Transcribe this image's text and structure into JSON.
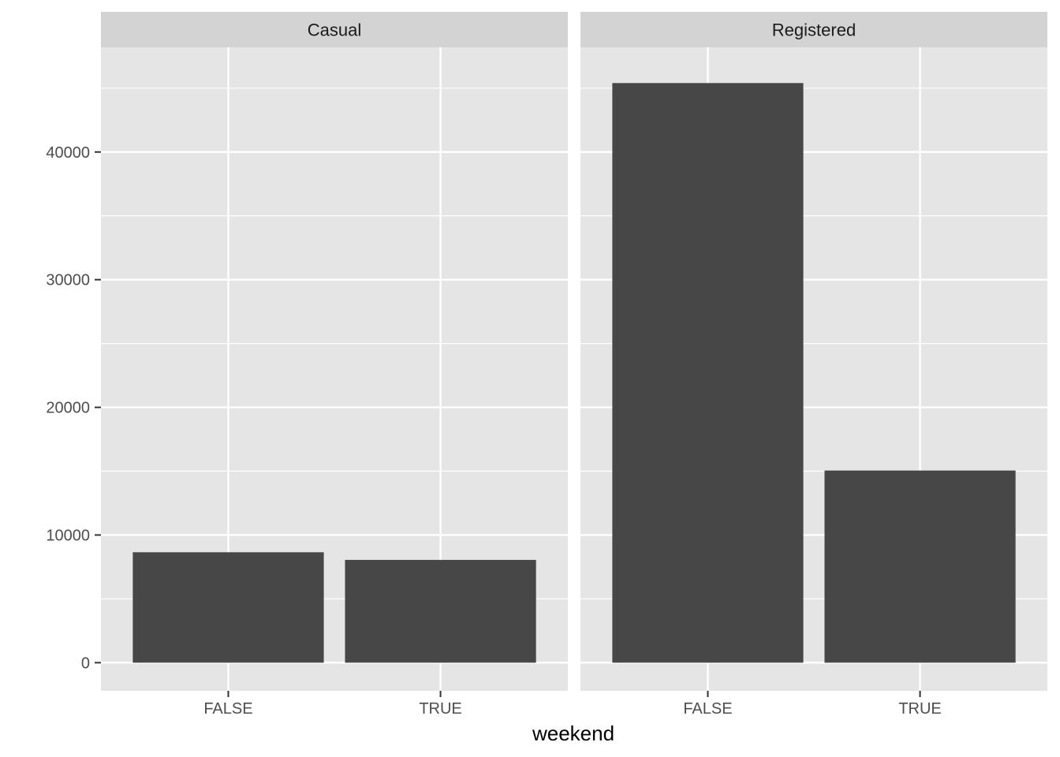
{
  "chart_data": {
    "type": "bar",
    "facets": [
      "Casual",
      "Registered"
    ],
    "categories": [
      "FALSE",
      "TRUE"
    ],
    "series": [
      {
        "facet": "Casual",
        "values": [
          8650,
          8050
        ]
      },
      {
        "facet": "Registered",
        "values": [
          45400,
          15050
        ]
      }
    ],
    "xlabel": "weekend",
    "ylabel": "",
    "ylim": [
      -2200,
      48200
    ],
    "yticks": [
      0,
      10000,
      20000,
      30000,
      40000
    ],
    "ytick_labels": [
      "0",
      "10000",
      "20000",
      "30000",
      "40000"
    ],
    "grid": true,
    "colors": {
      "bar": "#474747",
      "panel": "#e5e5e5",
      "strip": "#d3d3d3",
      "grid": "#ffffff"
    }
  }
}
